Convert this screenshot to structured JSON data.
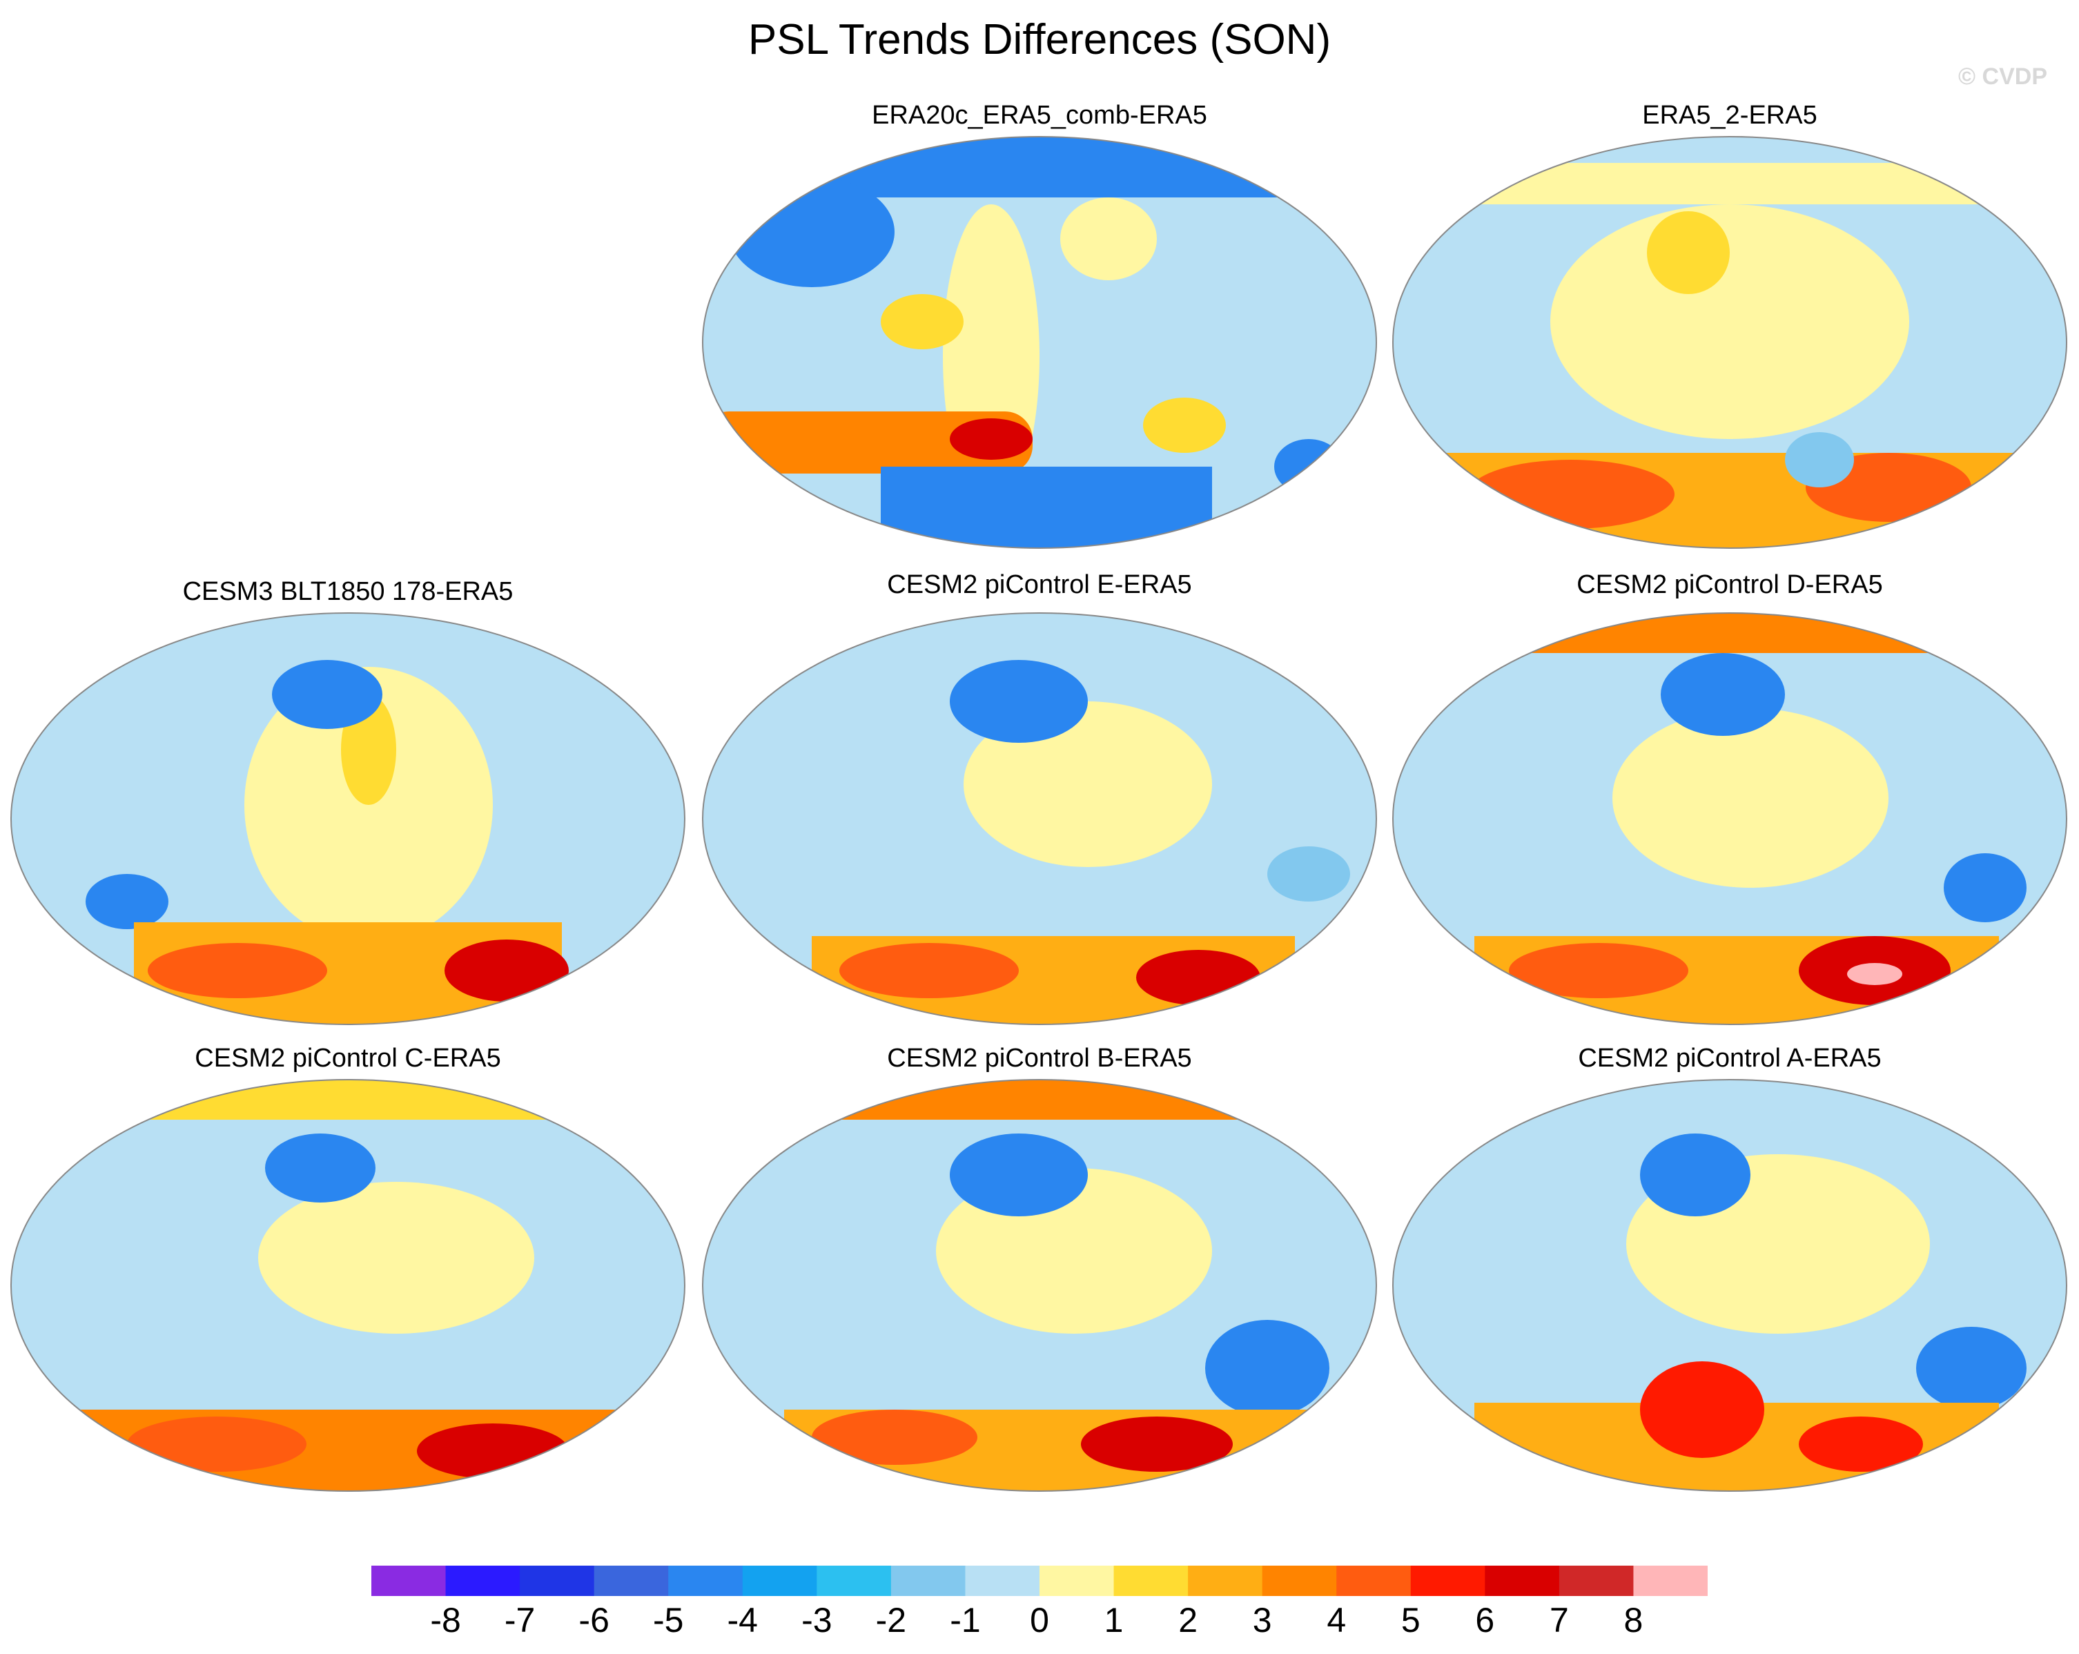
{
  "figure": {
    "title": "PSL Trends Differences (SON)",
    "copyright": "© CVDP"
  },
  "panels": [
    {
      "title": "ERA20c_ERA5_comb-ERA5"
    },
    {
      "title": "ERA5_2-ERA5"
    },
    {
      "title": "CESM3 BLT1850 178-ERA5"
    },
    {
      "title": "CESM2 piControl E-ERA5"
    },
    {
      "title": "CESM2 piControl D-ERA5"
    },
    {
      "title": "CESM2 piControl C-ERA5"
    },
    {
      "title": "CESM2 piControl B-ERA5"
    },
    {
      "title": "CESM2 piControl A-ERA5"
    }
  ],
  "colorbar": {
    "labels": [
      "-8",
      "-7",
      "-6",
      "-5",
      "-4",
      "-3",
      "-2",
      "-1",
      "0",
      "1",
      "2",
      "3",
      "4",
      "5",
      "6",
      "7",
      "8"
    ],
    "colors": [
      "#8a2be2",
      "#2b1aff",
      "#1f35e6",
      "#3a66dd",
      "#2a86f0",
      "#13a2f0",
      "#2cc0f0",
      "#82c8ee",
      "#b8e0f4",
      "#fff7a2",
      "#ffdc32",
      "#ffae14",
      "#ff8400",
      "#ff5c10",
      "#ff1a00",
      "#d90000",
      "#d02828",
      "#ffb6b8"
    ]
  }
}
